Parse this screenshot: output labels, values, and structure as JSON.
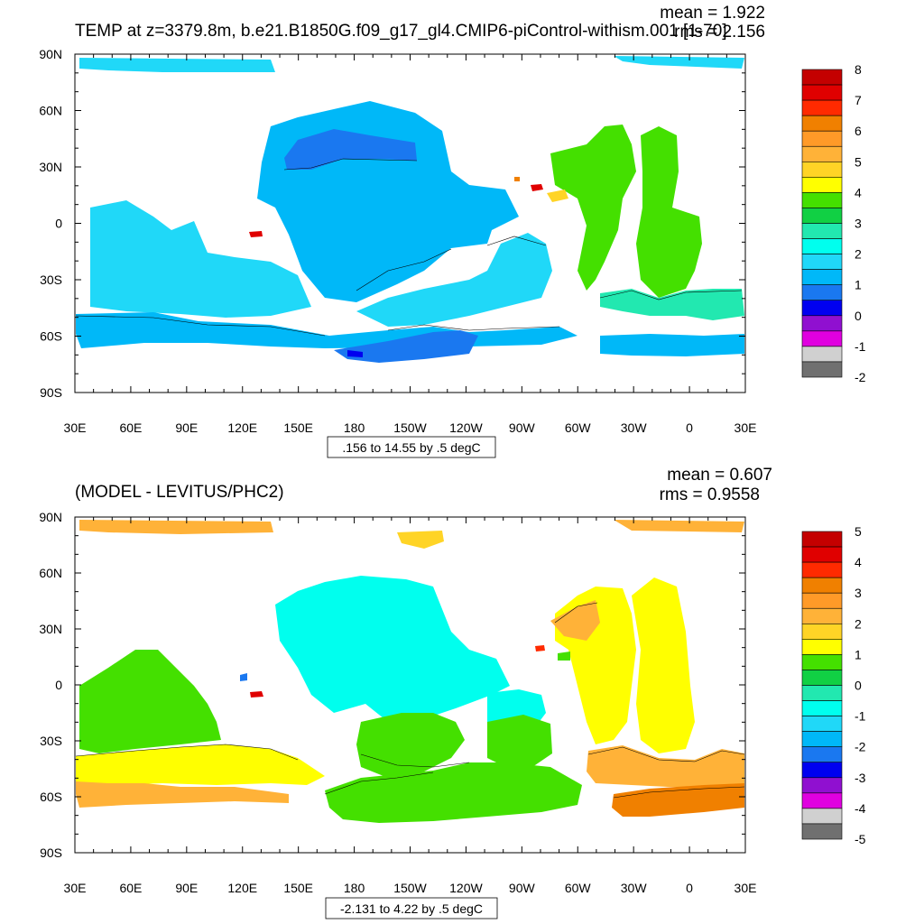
{
  "chart_data": [
    {
      "type": "heatmap",
      "title": "TEMP at z=3379.8m, b.e21.B1850G.f09_g17_gl4.CMIP6-piControl-withism.001 [1-70]",
      "stats": {
        "mean": "mean = 1.922",
        "rms": "rms = 2.156"
      },
      "x_ticks": [
        "30E",
        "60E",
        "90E",
        "120E",
        "150E",
        "180",
        "150W",
        "120W",
        "90W",
        "60W",
        "30W",
        "0",
        "30E"
      ],
      "y_ticks": [
        "90N",
        "60N",
        "30N",
        "0",
        "30S",
        "60S",
        "90S"
      ],
      "xlim": [
        30,
        390
      ],
      "ylim": [
        -90,
        90
      ],
      "range_label": ".156 to 14.55 by .5 degC",
      "colorbar": {
        "labels": [
          "8",
          "7",
          "6",
          "5",
          "4",
          "3",
          "2",
          "1",
          "0",
          "-1",
          "-2"
        ],
        "colors": [
          "#c40000",
          "#e00000",
          "#ff2a00",
          "#f08000",
          "#ff9a28",
          "#ffb238",
          "#ffd426",
          "#ffff00",
          "#44e000",
          "#11d044",
          "#22e8b0",
          "#00ffee",
          "#20d8f8",
          "#00b8f8",
          "#1a78f0",
          "#0000f0",
          "#9010d0",
          "#e000e0",
          "#d0d0d0",
          "#707070"
        ]
      }
    },
    {
      "type": "heatmap",
      "title": "(MODEL - LEVITUS/PHC2)",
      "stats": {
        "mean": "mean = 0.607",
        "rms": "rms = 0.9558"
      },
      "x_ticks": [
        "30E",
        "60E",
        "90E",
        "120E",
        "150E",
        "180",
        "150W",
        "120W",
        "90W",
        "60W",
        "30W",
        "0",
        "30E"
      ],
      "y_ticks": [
        "90N",
        "60N",
        "30N",
        "0",
        "30S",
        "60S",
        "90S"
      ],
      "xlim": [
        30,
        390
      ],
      "ylim": [
        -90,
        90
      ],
      "range_label": "-2.131 to 4.22 by .5 degC",
      "colorbar": {
        "labels": [
          "5",
          "4",
          "3",
          "2",
          "1",
          "0",
          "-1",
          "-2",
          "-3",
          "-4",
          "-5"
        ],
        "colors": [
          "#c40000",
          "#e00000",
          "#ff2a00",
          "#f08000",
          "#ff9a28",
          "#ffb238",
          "#ffd426",
          "#ffff00",
          "#44e000",
          "#11d044",
          "#22e8b0",
          "#00ffee",
          "#20d8f8",
          "#00b8f8",
          "#1a78f0",
          "#0000f0",
          "#9010d0",
          "#e000e0",
          "#d0d0d0",
          "#707070"
        ]
      }
    }
  ]
}
